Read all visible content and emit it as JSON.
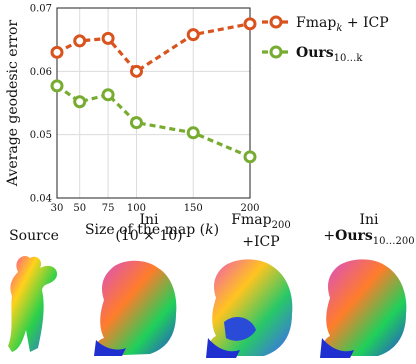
{
  "chart_data": {
    "type": "line",
    "x": [
      30,
      50,
      75,
      100,
      150,
      200
    ],
    "xticks": [
      "30",
      "50",
      "75",
      "100",
      "150",
      "200"
    ],
    "yticks": [
      "0.04",
      "0.05",
      "0.06",
      "0.07"
    ],
    "xlim": [
      30,
      200
    ],
    "ylim": [
      0.04,
      0.07
    ],
    "xlabel": "Size of the map (k)",
    "ylabel": "Average geodesic error",
    "grid": true,
    "legend_position": "top-right",
    "series": [
      {
        "name": "Fmap_k + ICP",
        "legend_main": "Fmap",
        "legend_sub": "k",
        "legend_tail": " + ICP",
        "color": "#d9531e",
        "values": [
          0.063,
          0.0648,
          0.0652,
          0.06,
          0.0658,
          0.0675
        ]
      },
      {
        "name": "Ours_10...k",
        "legend_main": "Ours",
        "legend_sub": "10…k",
        "legend_tail": "",
        "color": "#77ac30",
        "values": [
          0.0577,
          0.0552,
          0.0563,
          0.0519,
          0.0503,
          0.0465
        ]
      }
    ]
  },
  "captions": {
    "source": "Source",
    "ini_line1": "Ini",
    "ini_line2": "(10 × 10)",
    "fmap_line1": "Fmap",
    "fmap_sub": "200",
    "fmap_line2": "+ICP",
    "ours_line1": "Ini",
    "ours_plus": "+",
    "ours_bold": "Ours",
    "ours_sub": "10…200"
  }
}
